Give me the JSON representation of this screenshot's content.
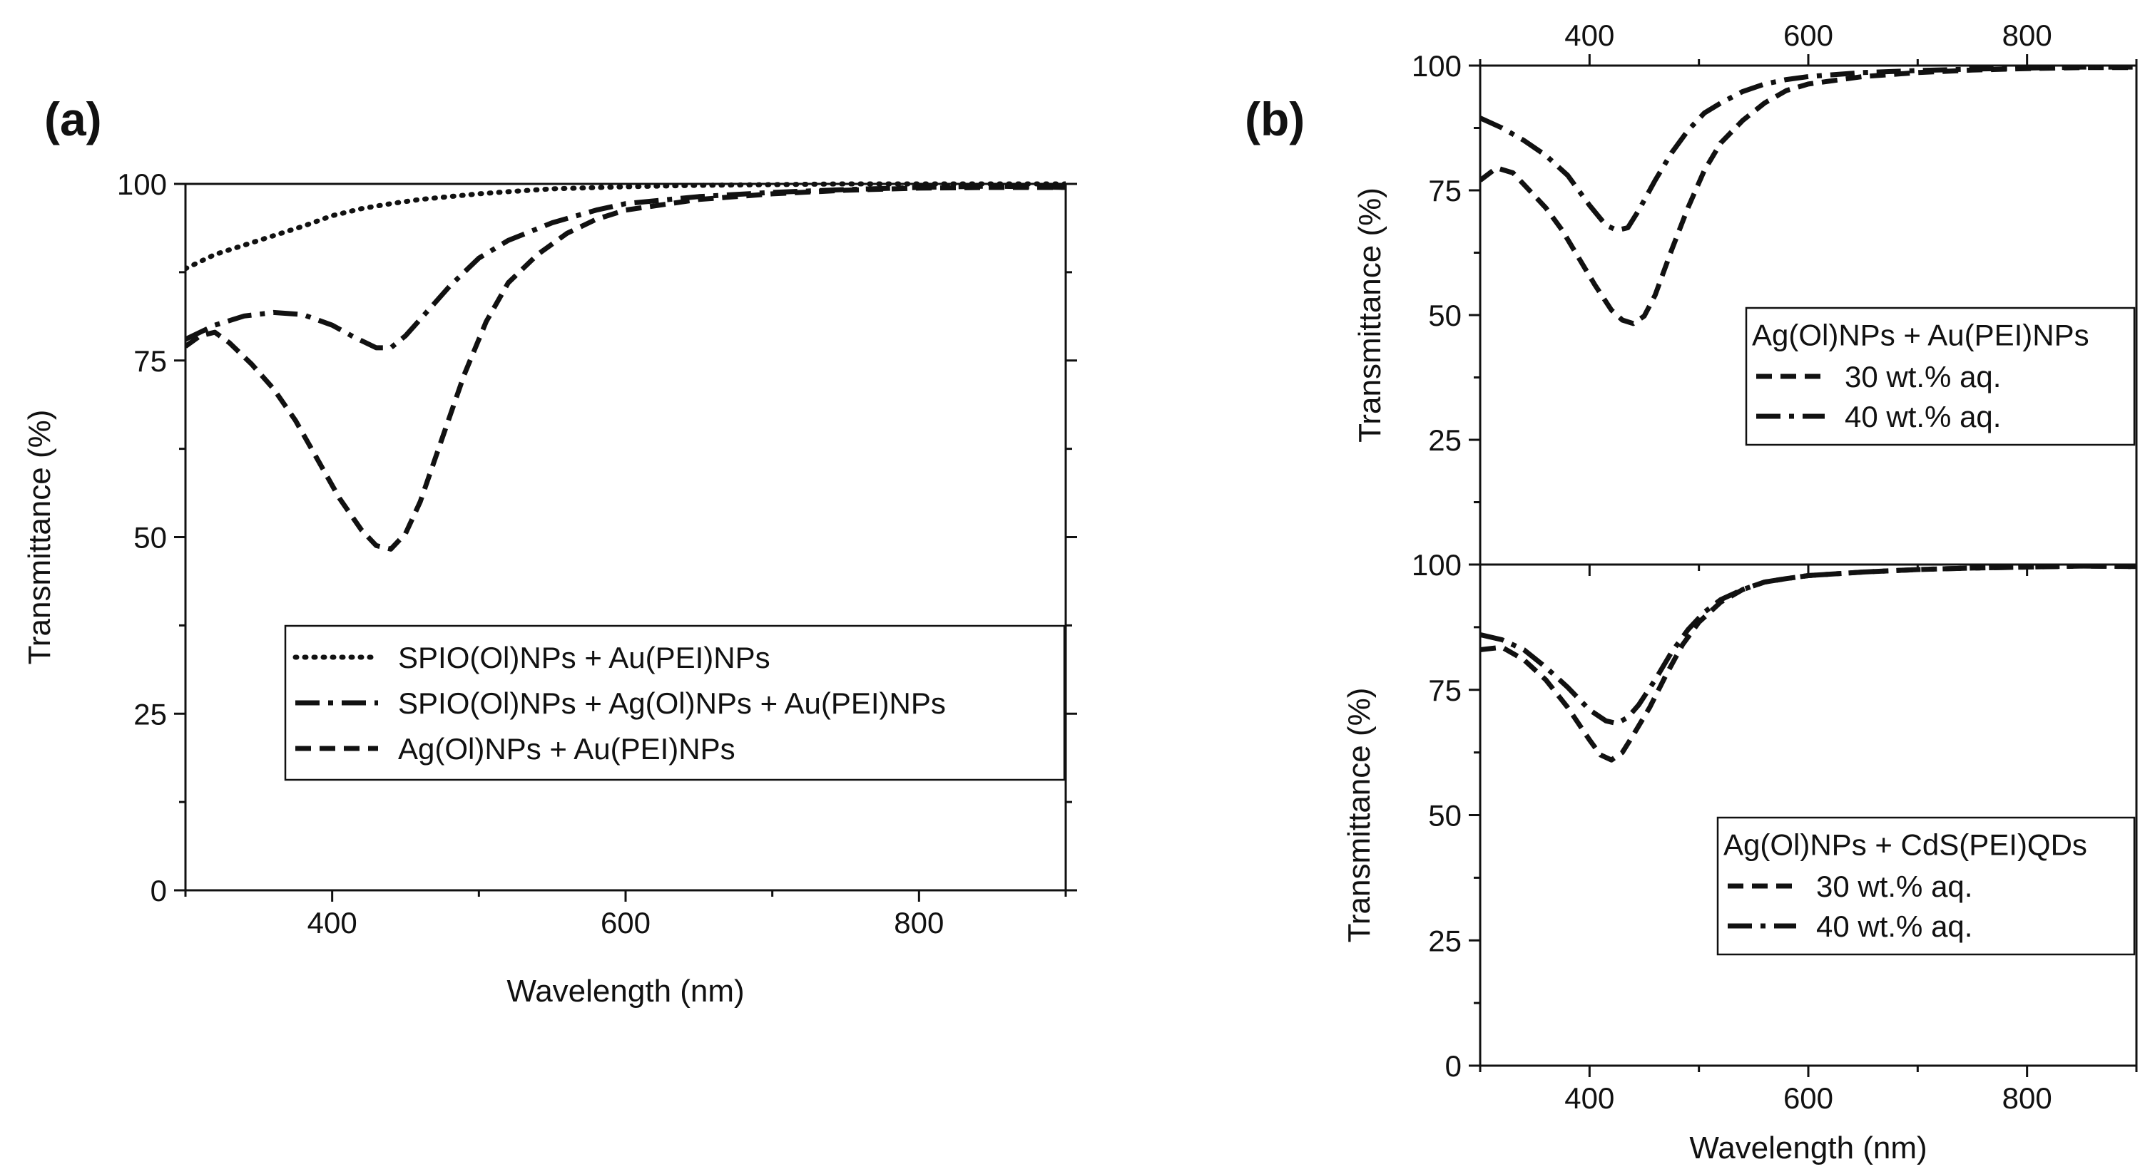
{
  "figure": {
    "panel_labels": [
      "(a)",
      "(b)"
    ]
  },
  "chart_data": [
    {
      "id": "a",
      "type": "line",
      "panel_label": "(a)",
      "xlabel": "Wavelength (nm)",
      "ylabel": "Transmittance (%)",
      "xlim": [
        300,
        900
      ],
      "ylim": [
        0,
        100
      ],
      "xticks": [
        400,
        600,
        800
      ],
      "yticks": [
        0,
        25,
        50,
        75,
        100
      ],
      "legend_position": "bottom-right",
      "series": [
        {
          "name": "SPIO(Ol)NPs + Au(PEI)NPs",
          "style": "dotted",
          "x": [
            300,
            320,
            350,
            380,
            400,
            420,
            440,
            460,
            480,
            500,
            520,
            550,
            600,
            650,
            700,
            750,
            800,
            850,
            900
          ],
          "y": [
            88,
            90,
            92,
            94,
            95.5,
            96.5,
            97.2,
            97.8,
            98.2,
            98.6,
            98.9,
            99.3,
            99.6,
            99.8,
            99.9,
            100,
            100,
            100,
            100
          ]
        },
        {
          "name": "SPIO(Ol)NPs + Ag(Ol)NPs + Au(PEI)NPs",
          "style": "dashdot",
          "x": [
            300,
            320,
            340,
            360,
            380,
            400,
            415,
            430,
            440,
            450,
            465,
            480,
            500,
            520,
            550,
            580,
            600,
            650,
            700,
            750,
            800,
            850,
            900
          ],
          "y": [
            78,
            80,
            81.3,
            81.8,
            81.5,
            80,
            78.3,
            76.8,
            76.8,
            78.5,
            82,
            85.5,
            89.5,
            92,
            94.5,
            96.3,
            97.2,
            98.2,
            98.8,
            99.2,
            99.5,
            99.7,
            99.5
          ]
        },
        {
          "name": "Ag(Ol)NPs + Au(PEI)NPs",
          "style": "dashed",
          "x": [
            300,
            310,
            320,
            330,
            345,
            360,
            375,
            390,
            405,
            420,
            430,
            440,
            450,
            460,
            475,
            490,
            505,
            520,
            540,
            560,
            580,
            600,
            650,
            700,
            750,
            800,
            850,
            900
          ],
          "y": [
            77,
            78.5,
            79,
            77.5,
            74.5,
            71,
            66.5,
            61,
            55.5,
            51,
            48.8,
            48.3,
            50.5,
            55,
            64,
            73,
            80.5,
            86,
            90,
            93,
            95,
            96.3,
            97.8,
            98.6,
            99.1,
            99.4,
            99.5,
            99.5
          ]
        }
      ]
    },
    {
      "id": "b-top",
      "type": "line",
      "panel_label": "(b)",
      "xlabel": "",
      "ylabel": "Transmittance (%)",
      "xlim": [
        300,
        900
      ],
      "ylim": [
        0,
        100
      ],
      "xticks": [
        400,
        600,
        800
      ],
      "yticks": [
        25,
        50,
        75,
        100
      ],
      "legend_position": "right",
      "legend_title": "Ag(Ol)NPs + Au(PEI)NPs",
      "series": [
        {
          "name": "30 wt.% aq.",
          "style": "dashed",
          "x": [
            300,
            315,
            330,
            345,
            360,
            375,
            390,
            405,
            420,
            430,
            440,
            450,
            460,
            475,
            490,
            505,
            520,
            540,
            560,
            580,
            600,
            650,
            700,
            750,
            800,
            850,
            900
          ],
          "y": [
            77,
            79.5,
            78.5,
            75,
            71.5,
            67,
            61.5,
            56,
            51,
            49,
            48.3,
            49.8,
            54,
            63,
            71.5,
            79,
            84.5,
            89,
            92.5,
            95,
            96.3,
            97.8,
            98.6,
            99.1,
            99.4,
            99.6,
            99.6
          ]
        },
        {
          "name": "40 wt.% aq.",
          "style": "dashdot",
          "x": [
            300,
            320,
            340,
            360,
            380,
            400,
            415,
            425,
            435,
            445,
            460,
            475,
            490,
            505,
            520,
            540,
            560,
            580,
            600,
            650,
            700,
            750,
            800,
            850,
            900
          ],
          "y": [
            89.5,
            87.5,
            85,
            82,
            78,
            72,
            68,
            67,
            67.5,
            71,
            77,
            82.5,
            87,
            90.5,
            92.5,
            94.8,
            96.3,
            97.2,
            97.8,
            98.6,
            99,
            99.3,
            99.5,
            99.7,
            99.7
          ]
        }
      ]
    },
    {
      "id": "b-bottom",
      "type": "line",
      "panel_label": "",
      "xlabel": "Wavelength (nm)",
      "ylabel": "Transmittance (%)",
      "xlim": [
        300,
        900
      ],
      "ylim": [
        0,
        100
      ],
      "xticks": [
        400,
        600,
        800
      ],
      "yticks": [
        0,
        25,
        50,
        75,
        100
      ],
      "legend_position": "bottom-right",
      "legend_title": "Ag(Ol)NPs + CdS(PEI)QDs",
      "series": [
        {
          "name": "30 wt.% aq.",
          "style": "dashed",
          "x": [
            300,
            320,
            340,
            360,
            380,
            400,
            410,
            420,
            430,
            440,
            455,
            470,
            485,
            500,
            520,
            540,
            560,
            580,
            600,
            650,
            700,
            750,
            800,
            850,
            900
          ],
          "y": [
            83,
            83.5,
            81,
            77,
            71.5,
            65,
            62,
            61,
            62.5,
            66,
            71.5,
            78,
            84,
            88.5,
            92.5,
            95,
            96.5,
            97.2,
            97.8,
            98.5,
            99,
            99.3,
            99.5,
            99.7,
            99.6
          ]
        },
        {
          "name": "40 wt.% aq.",
          "style": "dashdot",
          "x": [
            300,
            320,
            340,
            360,
            380,
            400,
            415,
            425,
            435,
            445,
            460,
            475,
            490,
            505,
            520,
            540,
            560,
            580,
            600,
            650,
            700,
            750,
            800,
            850,
            900
          ],
          "y": [
            86,
            85,
            83,
            79.5,
            75.5,
            71,
            68.8,
            68.3,
            69.5,
            72,
            77,
            82.5,
            87,
            90.5,
            93,
            95,
            96.5,
            97.2,
            97.8,
            98.5,
            99,
            99.3,
            99.5,
            99.7,
            99.6
          ]
        }
      ]
    }
  ]
}
